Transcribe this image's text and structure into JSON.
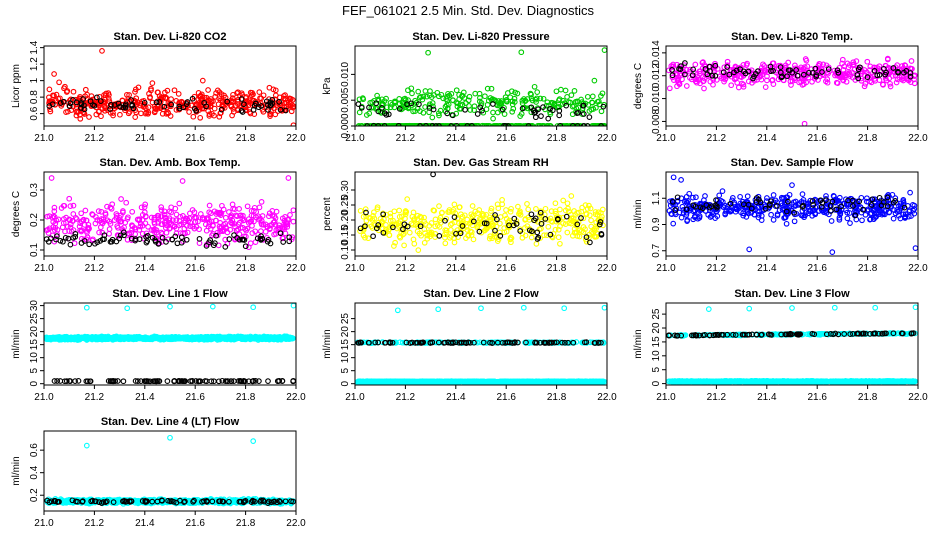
{
  "figure_title": "FEF_061021  2.5 Min. Std. Dev. Diagnostics",
  "colors": {
    "red": "#ff0000",
    "green": "#00cc00",
    "magenta": "#ff00ff",
    "yellow": "#ffff00",
    "blue": "#0000ff",
    "cyan": "#00ffff",
    "black": "#000000"
  },
  "chart_data": [
    {
      "type": "scatter",
      "id": "co2",
      "title": "Stan. Dev. Li-820 CO2",
      "xlabel": "",
      "ylabel": "Licor ppm",
      "xlim": [
        21.0,
        22.0
      ],
      "ylim": [
        0.45,
        1.42
      ],
      "xticks": [
        21.0,
        21.2,
        21.4,
        21.6,
        21.8,
        22.0
      ],
      "yticks": [
        0.6,
        0.8,
        1.0,
        1.2,
        1.4
      ],
      "series": [
        {
          "name": "bulk",
          "color": "red",
          "n": 430,
          "base": 0.72,
          "spread": 0.17,
          "seed": 11
        },
        {
          "name": "overlay",
          "color": "black",
          "n": 70,
          "base": 0.72,
          "spread": 0.08,
          "seed": 12
        },
        {
          "name": "outliers",
          "color": "red",
          "points": [
            [
              21.04,
              1.08
            ],
            [
              21.23,
              1.36
            ],
            [
              21.06,
              0.98
            ],
            [
              21.99,
              0.46
            ],
            [
              21.43,
              0.97
            ],
            [
              21.63,
              1.0
            ]
          ]
        }
      ]
    },
    {
      "type": "scatter",
      "id": "pressure",
      "title": "Stan. Dev. Li-820 Pressure",
      "xlabel": "",
      "ylabel": "kPa",
      "xlim": [
        21.0,
        22.0
      ],
      "ylim": [
        0.0,
        0.0155
      ],
      "xticks": [
        21.0,
        21.2,
        21.4,
        21.6,
        21.8,
        22.0
      ],
      "yticks": [
        0.0,
        0.005,
        0.01
      ],
      "ytick_labels": [
        "0.000",
        "0.005",
        "0.010"
      ],
      "series": [
        {
          "name": "baseline",
          "color": "green",
          "n": 300,
          "base": 0.0,
          "spread": 5e-05,
          "seed": 21
        },
        {
          "name": "bulk",
          "color": "green",
          "n": 260,
          "base": 0.0045,
          "spread": 0.0028,
          "seed": 22
        },
        {
          "name": "overlay",
          "color": "black",
          "n": 45,
          "base": 0.0035,
          "spread": 0.002,
          "seed": 23
        },
        {
          "name": "overlay-base",
          "color": "black",
          "n": 25,
          "base": 0.0,
          "spread": 5e-05,
          "seed": 24
        },
        {
          "name": "outliers",
          "color": "green",
          "points": [
            [
              21.29,
              0.0142
            ],
            [
              21.66,
              0.0143
            ],
            [
              21.99,
              0.0147
            ],
            [
              21.95,
              0.0088
            ]
          ]
        }
      ]
    },
    {
      "type": "scatter",
      "id": "temp",
      "title": "Stan. Dev. Li-820 Temp.",
      "xlabel": "",
      "ylabel": "degrees C",
      "xlim": [
        21.0,
        22.0
      ],
      "ylim": [
        0.0076,
        0.0146
      ],
      "xticks": [
        21.0,
        21.2,
        21.4,
        21.6,
        21.8,
        22.0
      ],
      "yticks": [
        0.008,
        0.01,
        0.012,
        0.014
      ],
      "ytick_labels": [
        "0.008",
        "0.010",
        "0.012",
        "0.014"
      ],
      "series": [
        {
          "name": "bulk",
          "color": "magenta",
          "n": 430,
          "base": 0.0122,
          "spread": 0.0011,
          "seed": 31
        },
        {
          "name": "overlay",
          "color": "black",
          "n": 70,
          "base": 0.0124,
          "spread": 0.0007,
          "seed": 32
        },
        {
          "name": "outliers",
          "color": "magenta",
          "points": [
            [
              21.55,
              0.0078
            ]
          ]
        }
      ]
    },
    {
      "type": "scatter",
      "id": "boxtemp",
      "title": "Stan. Dev. Amb. Box Temp.",
      "xlabel": "",
      "ylabel": "degrees C",
      "xlim": [
        21.0,
        22.0
      ],
      "ylim": [
        0.08,
        0.36
      ],
      "xticks": [
        21.0,
        21.2,
        21.4,
        21.6,
        21.8,
        22.0
      ],
      "yticks": [
        0.1,
        0.2,
        0.3
      ],
      "series": [
        {
          "name": "bulk",
          "color": "magenta",
          "n": 430,
          "base": 0.19,
          "spread": 0.065,
          "seed": 41
        },
        {
          "name": "overlay",
          "color": "black",
          "n": 80,
          "base": 0.135,
          "spread": 0.025,
          "seed": 42
        },
        {
          "name": "outliers",
          "color": "magenta",
          "points": [
            [
              21.03,
              0.34
            ],
            [
              21.55,
              0.33
            ],
            [
              21.97,
              0.34
            ]
          ]
        }
      ]
    },
    {
      "type": "scatter",
      "id": "rh",
      "title": "Stan. Dev. Gas Stream RH",
      "xlabel": "",
      "ylabel": "percent",
      "xlim": [
        21.0,
        22.0
      ],
      "ylim": [
        0.08,
        0.36
      ],
      "xticks": [
        21.0,
        21.2,
        21.4,
        21.6,
        21.8,
        22.0
      ],
      "yticks": [
        0.1,
        0.15,
        0.2,
        0.25,
        0.3
      ],
      "ytick_labels": [
        "0.10",
        "0.15",
        "0.20",
        "0.25",
        "0.30"
      ],
      "series": [
        {
          "name": "bulk",
          "color": "yellow",
          "n": 420,
          "base": 0.19,
          "spread": 0.065,
          "seed": 51
        },
        {
          "name": "overlay",
          "color": "black",
          "n": 55,
          "base": 0.18,
          "spread": 0.05,
          "seed": 52
        },
        {
          "name": "outliers",
          "color": "black",
          "points": [
            [
              21.31,
              0.352
            ]
          ]
        }
      ]
    },
    {
      "type": "scatter",
      "id": "sampleflow",
      "title": "Stan. Dev. Sample Flow",
      "xlabel": "",
      "ylabel": "ml/min",
      "xlim": [
        21.0,
        22.0
      ],
      "ylim": [
        0.66,
        1.3
      ],
      "xticks": [
        21.0,
        21.2,
        21.4,
        21.6,
        21.8,
        22.0
      ],
      "yticks": [
        0.7,
        0.9,
        1.1
      ],
      "series": [
        {
          "name": "bulk",
          "color": "blue",
          "n": 450,
          "base": 1.03,
          "spread": 0.1,
          "seed": 61
        },
        {
          "name": "overlay",
          "color": "black",
          "n": 60,
          "base": 1.05,
          "spread": 0.06,
          "seed": 62
        },
        {
          "name": "outliers",
          "color": "blue",
          "points": [
            [
              21.03,
              1.26
            ],
            [
              21.06,
              1.24
            ],
            [
              21.33,
              0.71
            ],
            [
              21.66,
              0.69
            ],
            [
              21.99,
              0.72
            ],
            [
              21.5,
              1.2
            ]
          ]
        }
      ]
    },
    {
      "type": "scatter",
      "id": "line1",
      "title": "Stan. Dev. Line 1 Flow",
      "xlabel": "",
      "ylabel": "ml/min",
      "xlim": [
        21.0,
        22.0
      ],
      "ylim": [
        -0.5,
        31.0
      ],
      "xticks": [
        21.0,
        21.2,
        21.4,
        21.6,
        21.8,
        22.0
      ],
      "yticks": [
        0,
        5,
        10,
        15,
        20,
        25,
        30
      ],
      "series": [
        {
          "name": "cyan-band",
          "color": "cyan",
          "n": 900,
          "base": 17.5,
          "spread": 0.6,
          "seed": 71
        },
        {
          "name": "black-base",
          "color": "black",
          "n": 90,
          "base": 1.0,
          "spread": 0.1,
          "seed": 72
        },
        {
          "name": "cyan-top",
          "color": "cyan",
          "points": [
            [
              21.17,
              29.2
            ],
            [
              21.33,
              29.0
            ],
            [
              21.5,
              29.6
            ],
            [
              21.67,
              29.6
            ],
            [
              21.83,
              29.4
            ],
            [
              21.99,
              30.0
            ]
          ]
        }
      ]
    },
    {
      "type": "scatter",
      "id": "line2",
      "title": "Stan. Dev. Line 2 Flow",
      "xlabel": "",
      "ylabel": "ml/min",
      "xlim": [
        21.0,
        22.0
      ],
      "ylim": [
        -0.5,
        31.0
      ],
      "xticks": [
        21.0,
        21.2,
        21.4,
        21.6,
        21.8,
        22.0
      ],
      "yticks": [
        0,
        5,
        10,
        15,
        20,
        25
      ],
      "series": [
        {
          "name": "cyan-base",
          "color": "cyan",
          "n": 900,
          "base": 0.8,
          "spread": 0.15,
          "seed": 81
        },
        {
          "name": "cyan-band",
          "color": "cyan",
          "n": 200,
          "base": 15.8,
          "spread": 0.2,
          "seed": 82
        },
        {
          "name": "black-band",
          "color": "black",
          "n": 90,
          "base": 15.8,
          "spread": 0.2,
          "seed": 83
        },
        {
          "name": "cyan-top",
          "color": "cyan",
          "points": [
            [
              21.17,
              28.2
            ],
            [
              21.33,
              28.6
            ],
            [
              21.5,
              29.0
            ],
            [
              21.67,
              29.2
            ],
            [
              21.83,
              29.0
            ],
            [
              21.99,
              29.2
            ]
          ]
        }
      ]
    },
    {
      "type": "scatter",
      "id": "line3",
      "title": "Stan. Dev. Line 3 Flow",
      "xlabel": "",
      "ylabel": "ml/min",
      "xlim": [
        21.0,
        22.0
      ],
      "ylim": [
        -0.5,
        29.0
      ],
      "xticks": [
        21.0,
        21.2,
        21.4,
        21.6,
        21.8,
        22.0
      ],
      "yticks": [
        0,
        5,
        10,
        15,
        20,
        25
      ],
      "series": [
        {
          "name": "cyan-base",
          "color": "cyan",
          "n": 900,
          "base": 0.8,
          "spread": 0.15,
          "seed": 91
        },
        {
          "name": "cyan-band",
          "color": "cyan",
          "n": 220,
          "base": 17.3,
          "spread": 0.2,
          "trend": 0.8,
          "seed": 92
        },
        {
          "name": "black-band",
          "color": "black",
          "n": 90,
          "base": 17.3,
          "spread": 0.2,
          "trend": 0.8,
          "seed": 93
        },
        {
          "name": "cyan-top",
          "color": "cyan",
          "points": [
            [
              21.17,
              26.8
            ],
            [
              21.33,
              27.0
            ],
            [
              21.5,
              27.2
            ],
            [
              21.67,
              27.3
            ],
            [
              21.83,
              27.3
            ],
            [
              21.99,
              27.5
            ]
          ]
        }
      ]
    },
    {
      "type": "scatter",
      "id": "line4",
      "title": "Stan. Dev. Line 4 (LT) Flow",
      "xlabel": "",
      "ylabel": "ml/min",
      "xlim": [
        21.0,
        22.0
      ],
      "ylim": [
        0.06,
        0.77
      ],
      "xticks": [
        21.0,
        21.2,
        21.4,
        21.6,
        21.8,
        22.0
      ],
      "yticks": [
        0.2,
        0.4,
        0.6
      ],
      "series": [
        {
          "name": "cyan-band",
          "color": "cyan",
          "n": 700,
          "base": 0.145,
          "spread": 0.018,
          "seed": 101
        },
        {
          "name": "black-band",
          "color": "black",
          "n": 90,
          "base": 0.145,
          "spread": 0.012,
          "seed": 102
        },
        {
          "name": "cyan-top",
          "color": "cyan",
          "points": [
            [
              21.17,
              0.64
            ],
            [
              21.5,
              0.71
            ],
            [
              21.83,
              0.68
            ]
          ]
        }
      ]
    }
  ]
}
